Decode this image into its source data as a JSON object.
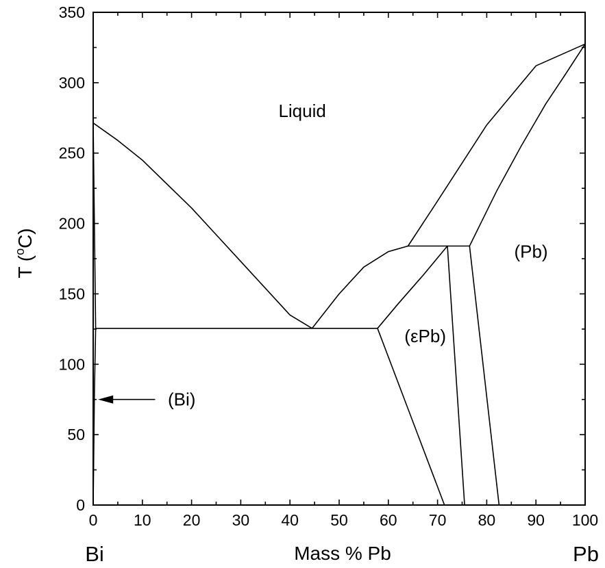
{
  "chart_data": {
    "type": "phase-diagram",
    "xlabel": "Mass % Pb",
    "ylabel": "T (°C)",
    "ylabel_parts": {
      "prefix": "T (",
      "sup": "o",
      "suffix": "C)"
    },
    "x_end_labels": {
      "left": "Bi",
      "right": "Pb"
    },
    "xlim": [
      0,
      100
    ],
    "ylim": [
      0,
      350
    ],
    "x_ticks": [
      0,
      10,
      20,
      30,
      40,
      50,
      60,
      70,
      80,
      90,
      100
    ],
    "x_tick_labels": [
      "0",
      "10",
      "20",
      "30",
      "40",
      "50",
      "60",
      "70",
      "80",
      "90",
      "100"
    ],
    "y_ticks": [
      0,
      50,
      100,
      150,
      200,
      250,
      300,
      350
    ],
    "y_tick_labels": [
      "0",
      "50",
      "100",
      "150",
      "200",
      "250",
      "300",
      "350"
    ],
    "regions": [
      {
        "name": "liquid",
        "label": "Liquid",
        "x": 42.5,
        "y": 280
      },
      {
        "name": "pb",
        "label": "(Pb)",
        "x": 89,
        "y": 180
      },
      {
        "name": "epsilon-pb",
        "label": "(εPb)",
        "x": 67.5,
        "y": 120
      },
      {
        "name": "bi",
        "label": "(Bi)",
        "x": 18,
        "y": 75
      }
    ],
    "arrow": {
      "from": [
        12.5,
        75
      ],
      "to": [
        1.0,
        75
      ]
    },
    "curves": [
      {
        "name": "liquidus-bi-side",
        "points": [
          [
            0,
            271.4
          ],
          [
            5,
            259
          ],
          [
            10,
            245
          ],
          [
            15,
            228
          ],
          [
            20,
            211
          ],
          [
            25,
            192
          ],
          [
            30,
            173
          ],
          [
            35,
            154
          ],
          [
            40,
            135
          ],
          [
            44.5,
            125.5
          ]
        ]
      },
      {
        "name": "liquidus-pb-side-lower",
        "points": [
          [
            44.5,
            125.5
          ],
          [
            50,
            150
          ],
          [
            55,
            169
          ],
          [
            60,
            180
          ],
          [
            64,
            184
          ]
        ]
      },
      {
        "name": "liquidus-pb-side-upper",
        "points": [
          [
            64,
            184
          ],
          [
            70,
            216
          ],
          [
            80,
            270
          ],
          [
            90,
            312
          ],
          [
            100,
            327.5
          ]
        ]
      },
      {
        "name": "pb-solidus",
        "points": [
          [
            76.5,
            184
          ],
          [
            82,
            223
          ],
          [
            87,
            255
          ],
          [
            92,
            285
          ],
          [
            96,
            306
          ],
          [
            100,
            327.5
          ]
        ]
      },
      {
        "name": "peritectic-line",
        "points": [
          [
            64,
            184
          ],
          [
            76.5,
            184
          ]
        ]
      },
      {
        "name": "eutectic-line",
        "points": [
          [
            0.5,
            125.5
          ],
          [
            57.8,
            125.5
          ]
        ]
      },
      {
        "name": "epsilon-liquidus-boundary",
        "points": [
          [
            57.8,
            125.5
          ],
          [
            62,
            143
          ],
          [
            67,
            163
          ],
          [
            72,
            184
          ]
        ]
      },
      {
        "name": "epsilon-solvus-left",
        "points": [
          [
            57.8,
            125.5
          ],
          [
            71.4,
            0
          ]
        ]
      },
      {
        "name": "epsilon-solvus-right",
        "points": [
          [
            72,
            184
          ],
          [
            75.5,
            0
          ]
        ]
      },
      {
        "name": "pb-solvus",
        "points": [
          [
            76.5,
            184
          ],
          [
            82.5,
            0
          ]
        ]
      },
      {
        "name": "bi-solidus",
        "points": [
          [
            0,
            271.4
          ],
          [
            0.5,
            125.5
          ]
        ]
      },
      {
        "name": "bi-solvus",
        "points": [
          [
            0.5,
            125.5
          ],
          [
            0.25,
            80
          ],
          [
            0.1,
            30
          ],
          [
            0,
            0
          ]
        ]
      }
    ]
  }
}
